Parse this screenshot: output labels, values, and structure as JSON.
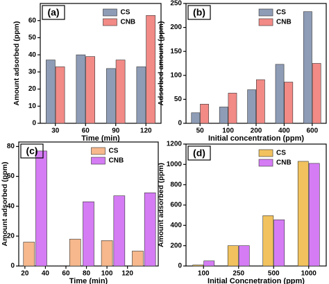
{
  "chart_data": [
    {
      "type": "bar",
      "title": "(a)",
      "xlabel": "Time (min)",
      "ylabel": "Amount adsorbed (ppm)",
      "categories": [
        "30",
        "60",
        "90",
        "120"
      ],
      "series": [
        {
          "name": "CS",
          "color": "#8e9cb6",
          "values": [
            37,
            40,
            32,
            33
          ]
        },
        {
          "name": "CNB",
          "color": "#f28a86",
          "values": [
            33,
            39,
            37,
            63
          ]
        }
      ],
      "ylim": [
        0,
        70
      ],
      "yticks": [
        0,
        10,
        20,
        30,
        40,
        50,
        60
      ]
    },
    {
      "type": "bar",
      "title": "(b)",
      "xlabel": "Initial concentration (ppm)",
      "ylabel": "Adsorbed amount (ppm)",
      "categories": [
        "50",
        "100",
        "200",
        "400",
        "600"
      ],
      "series": [
        {
          "name": "CS",
          "color": "#8e9cb6",
          "values": [
            22,
            34,
            70,
            123,
            233
          ]
        },
        {
          "name": "CNB",
          "color": "#f28a86",
          "values": [
            40,
            63,
            91,
            86,
            125
          ]
        }
      ],
      "ylim": [
        0,
        250
      ],
      "yticks": [
        0,
        50,
        100,
        150,
        200,
        250
      ]
    },
    {
      "type": "xbar",
      "title": "(c)",
      "xlabel": "Time (min)",
      "ylabel": "Amount adsorbed (ppm)",
      "series": [
        {
          "name": "CS",
          "color": "#f6b88c",
          "x": [
            24,
            69,
            100,
            130
          ],
          "values": [
            16,
            18,
            17,
            10
          ]
        },
        {
          "name": "CNB",
          "color": "#d57cf5",
          "x": [
            36,
            82,
            112,
            142
          ],
          "values": [
            77,
            43,
            47,
            49
          ]
        }
      ],
      "xlim": [
        14,
        150
      ],
      "xticks": [
        20,
        40,
        60,
        80,
        100,
        120
      ],
      "ylim": [
        0,
        83
      ],
      "yticks": [
        0,
        20,
        40,
        60,
        80
      ]
    },
    {
      "type": "bar",
      "title": "(d)",
      "xlabel": "Initial Concnetration (ppm)",
      "ylabel": "Amount adsorbed (ppm)",
      "categories": [
        "100",
        "250",
        "500",
        "1000"
      ],
      "series": [
        {
          "name": "CS",
          "color": "#f1c25e",
          "values": [
            10,
            200,
            495,
            1030
          ]
        },
        {
          "name": "CNB",
          "color": "#d57cf5",
          "values": [
            50,
            200,
            455,
            1010
          ]
        }
      ],
      "ylim": [
        0,
        1200
      ],
      "yticks": [
        0,
        200,
        400,
        600,
        800,
        1000,
        1200
      ]
    }
  ]
}
